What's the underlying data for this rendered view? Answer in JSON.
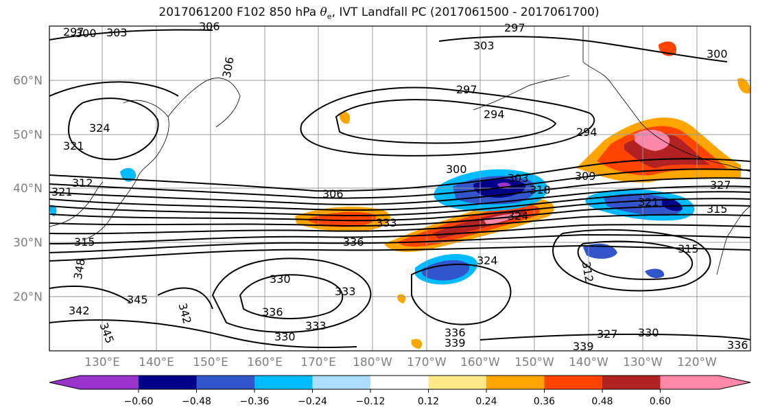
{
  "title": {
    "prefix": "2017061200 F102 850 hPa",
    "theta_symbol": "θ",
    "theta_sub": "e",
    "suffix": ", IVT Landfall PC (2017061500 - 2017061700)"
  },
  "lat_labels": [
    "60°N",
    "50°N",
    "40°N",
    "30°N",
    "20°N"
  ],
  "lon_labels": [
    "130°E",
    "140°E",
    "150°E",
    "160°E",
    "170°E",
    "180°W",
    "170°W",
    "160°W",
    "150°W",
    "140°W",
    "130°W",
    "120°W"
  ],
  "contour_labels": [
    "297",
    "300",
    "303",
    "306",
    "306",
    "297",
    "294",
    "294",
    "300",
    "303",
    "306",
    "309",
    "312",
    "315",
    "318",
    "321",
    "324",
    "321",
    "324",
    "327",
    "303",
    "297",
    "300",
    "333",
    "336",
    "330",
    "336",
    "333",
    "324",
    "315",
    "312",
    "321",
    "315",
    "345",
    "342",
    "342",
    "339",
    "345",
    "348",
    "333",
    "330",
    "336",
    "327",
    "330",
    "339",
    "336"
  ],
  "colorbar": {
    "ticks": [
      "−0.60",
      "−0.48",
      "−0.36",
      "−0.24",
      "−0.12",
      "0.12",
      "0.24",
      "0.36",
      "0.48",
      "0.60"
    ],
    "colors": [
      "#9933cc",
      "#000088",
      "#3355cc",
      "#00bbff",
      "#aaddff",
      "#ffffff",
      "#ffe888",
      "#ffa500",
      "#ff4400",
      "#b22222",
      "#ff88aa"
    ]
  }
}
